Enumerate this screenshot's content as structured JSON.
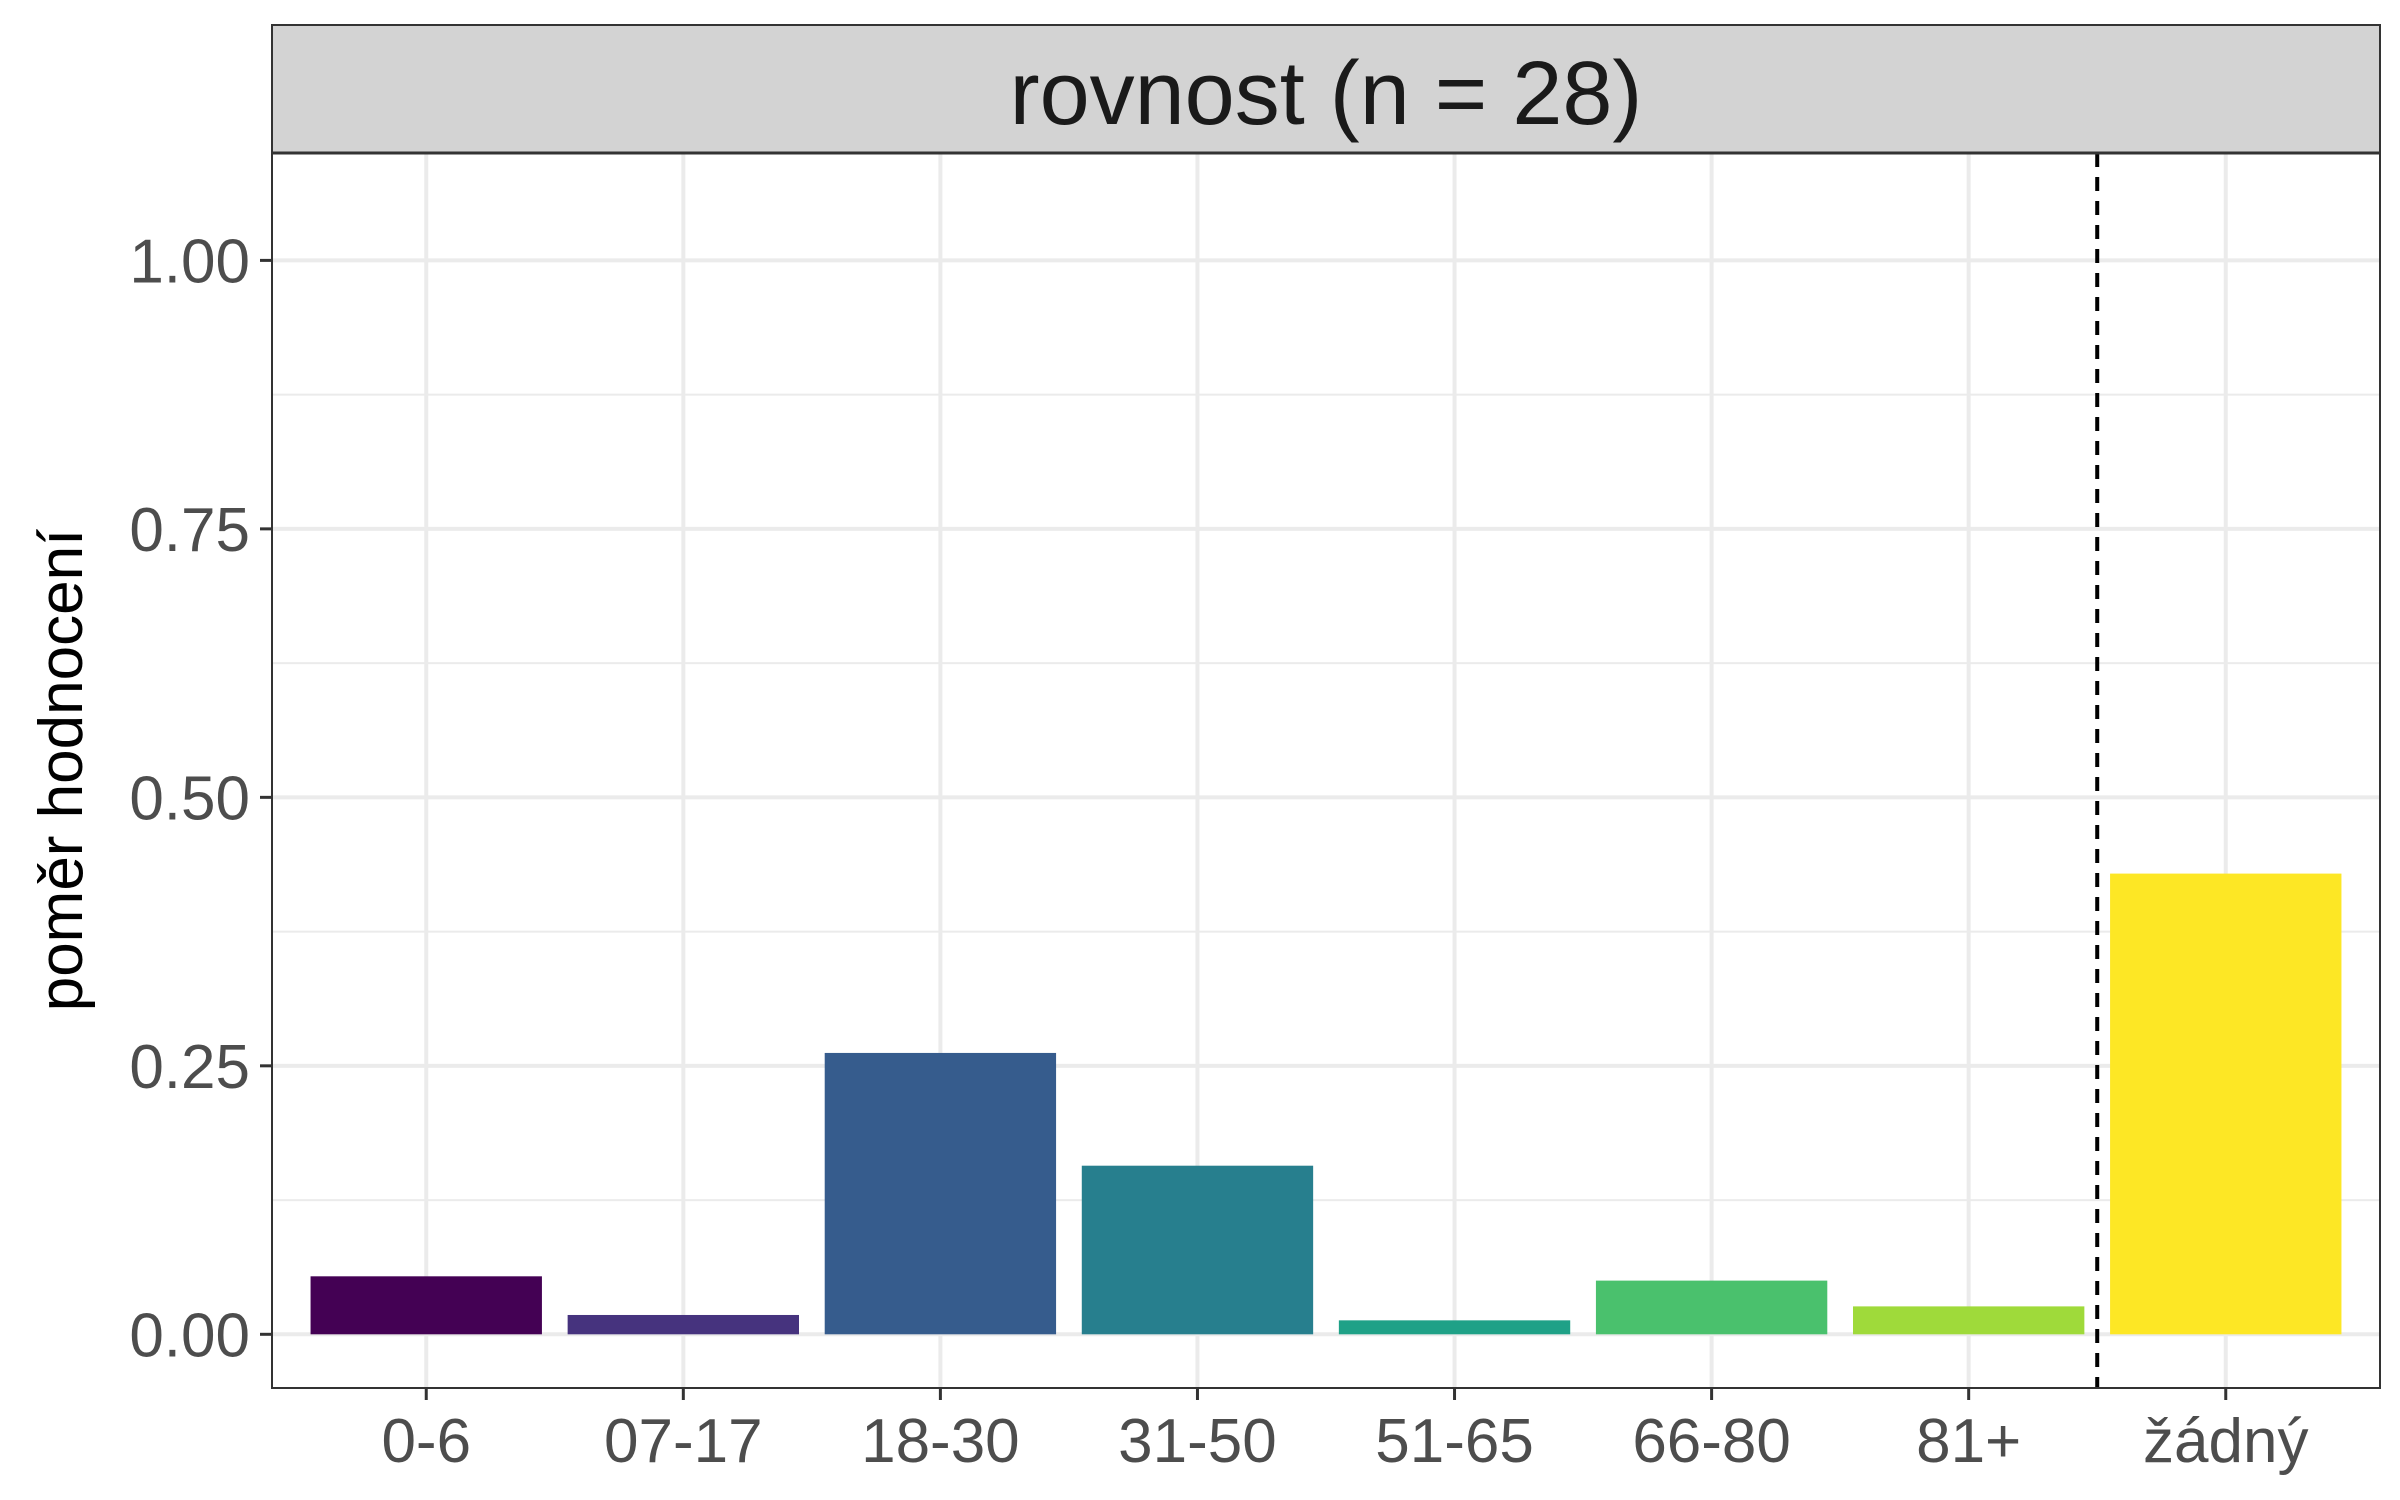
{
  "chart_data": {
    "type": "bar",
    "title": "rovnost (n = 28)",
    "xlabel": "",
    "ylabel": "poměr hodnocení",
    "categories": [
      "0-6",
      "07-17",
      "18-30",
      "31-50",
      "51-65",
      "66-80",
      "81+",
      "žádný"
    ],
    "values": [
      0.054,
      0.018,
      0.262,
      0.157,
      0.013,
      0.05,
      0.026,
      0.429
    ],
    "colors": [
      "#440154",
      "#46337E",
      "#365C8D",
      "#277F8E",
      "#1FA187",
      "#4AC16D",
      "#9FDA3A",
      "#FDE725"
    ],
    "ylim": [
      -0.05,
      1.1
    ],
    "yticks": [
      0,
      0.25,
      0.5,
      0.75,
      1.0
    ],
    "ytick_labels": [
      "0.00",
      "0.25",
      "0.50",
      "0.75",
      "1.00"
    ],
    "reference_line": {
      "between": [
        "81+",
        "žádný"
      ],
      "style": "dashed"
    },
    "grid": true,
    "legend": "none"
  }
}
